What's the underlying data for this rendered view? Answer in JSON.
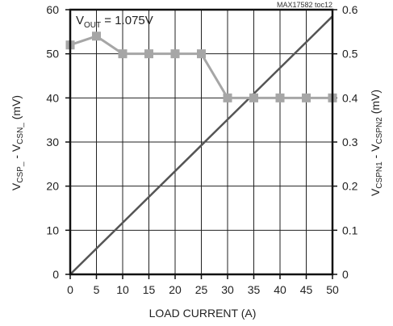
{
  "chart_data": {
    "type": "line",
    "figure_id": "MAX17582 toc12",
    "annotation": {
      "main": "V",
      "sub": "OUT",
      "rest": " = 1.075V"
    },
    "xlabel": "LOAD CURRENT (A)",
    "ylabel": {
      "a": "V",
      "a_sub": "CSP_",
      "mid": " - V",
      "b_sub": "CSN_",
      "end": " (mV)"
    },
    "y2label": {
      "a": "V",
      "a_sub": "CSPN1",
      "mid": " - V",
      "b_sub": "CSPN2",
      "end": " (mV)"
    },
    "xlim": [
      0,
      50
    ],
    "ylim": [
      0,
      60
    ],
    "y2lim": [
      0,
      0.6
    ],
    "x_ticks": [
      "0",
      "5",
      "10",
      "15",
      "20",
      "25",
      "30",
      "35",
      "40",
      "45",
      "50"
    ],
    "y_ticks": [
      "0",
      "10",
      "20",
      "30",
      "40",
      "50",
      "60"
    ],
    "y2_ticks": [
      "0",
      "0.1",
      "0.2",
      "0.3",
      "0.4",
      "0.5",
      "0.6"
    ],
    "grid": true,
    "series": [
      {
        "axis": "left",
        "color": "#555555",
        "marker": "none",
        "x": [
          0,
          50
        ],
        "y": [
          0,
          58.5
        ]
      },
      {
        "axis": "right",
        "color": "#a6a6a6",
        "marker": "square",
        "x": [
          0,
          5,
          10,
          15,
          20,
          25,
          30,
          35,
          40,
          45,
          50
        ],
        "y": [
          0.52,
          0.54,
          0.5,
          0.5,
          0.5,
          0.5,
          0.4,
          0.4,
          0.4,
          0.4,
          0.4
        ]
      }
    ]
  }
}
